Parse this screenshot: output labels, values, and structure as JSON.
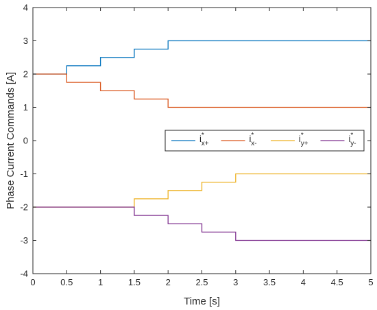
{
  "chart_data": {
    "type": "line",
    "step": true,
    "xlabel": "Time [s]",
    "ylabel": "Phase Current Commands [A]",
    "xlim": [
      0,
      5
    ],
    "ylim": [
      -4,
      4
    ],
    "xticks": [
      0,
      0.5,
      1,
      1.5,
      2,
      2.5,
      3,
      3.5,
      4,
      4.5,
      5
    ],
    "xtick_labels": [
      "0",
      "0.5",
      "1",
      "1.5",
      "2",
      "2.5",
      "3",
      "3.5",
      "4",
      "4.5",
      "5"
    ],
    "yticks": [
      4,
      3,
      2,
      1,
      0,
      -1,
      -2,
      -3,
      -4
    ],
    "ytick_labels": [
      "4",
      "3",
      "2",
      "1",
      "0",
      "-1",
      "-2",
      "-3",
      "-4"
    ],
    "grid": false,
    "legend_placement": "right, middle",
    "legend_orientation": "horizontal",
    "series": [
      {
        "name": "i*x+",
        "legend": {
          "base": "i",
          "sup": "*",
          "sub": "x+"
        },
        "color": "#0072BD",
        "points": [
          [
            0,
            2
          ],
          [
            0.5,
            2
          ],
          [
            0.5,
            2.25
          ],
          [
            1,
            2.25
          ],
          [
            1,
            2.5
          ],
          [
            1.5,
            2.5
          ],
          [
            1.5,
            2.75
          ],
          [
            2,
            2.75
          ],
          [
            2,
            3
          ],
          [
            5,
            3
          ]
        ]
      },
      {
        "name": "i*x-",
        "legend": {
          "base": "i",
          "sup": "*",
          "sub": "x-"
        },
        "color": "#D95319",
        "points": [
          [
            0,
            2
          ],
          [
            0.5,
            2
          ],
          [
            0.5,
            1.75
          ],
          [
            1,
            1.75
          ],
          [
            1,
            1.5
          ],
          [
            1.5,
            1.5
          ],
          [
            1.5,
            1.25
          ],
          [
            2,
            1.25
          ],
          [
            2,
            1
          ],
          [
            5,
            1
          ]
        ]
      },
      {
        "name": "i*y+",
        "legend": {
          "base": "i",
          "sup": "*",
          "sub": "y+"
        },
        "color": "#EDB120",
        "points": [
          [
            0,
            -2
          ],
          [
            1.5,
            -2
          ],
          [
            1.5,
            -1.75
          ],
          [
            2,
            -1.75
          ],
          [
            2,
            -1.5
          ],
          [
            2.5,
            -1.5
          ],
          [
            2.5,
            -1.25
          ],
          [
            3,
            -1.25
          ],
          [
            3,
            -1
          ],
          [
            5,
            -1
          ]
        ]
      },
      {
        "name": "i*y-",
        "legend": {
          "base": "i",
          "sup": "*",
          "sub": "y-"
        },
        "color": "#7E2F8E",
        "points": [
          [
            0,
            -2
          ],
          [
            1.5,
            -2
          ],
          [
            1.5,
            -2.25
          ],
          [
            2,
            -2.25
          ],
          [
            2,
            -2.5
          ],
          [
            2.5,
            -2.5
          ],
          [
            2.5,
            -2.75
          ],
          [
            3,
            -2.75
          ],
          [
            3,
            -3
          ],
          [
            5,
            -3
          ]
        ]
      }
    ]
  }
}
